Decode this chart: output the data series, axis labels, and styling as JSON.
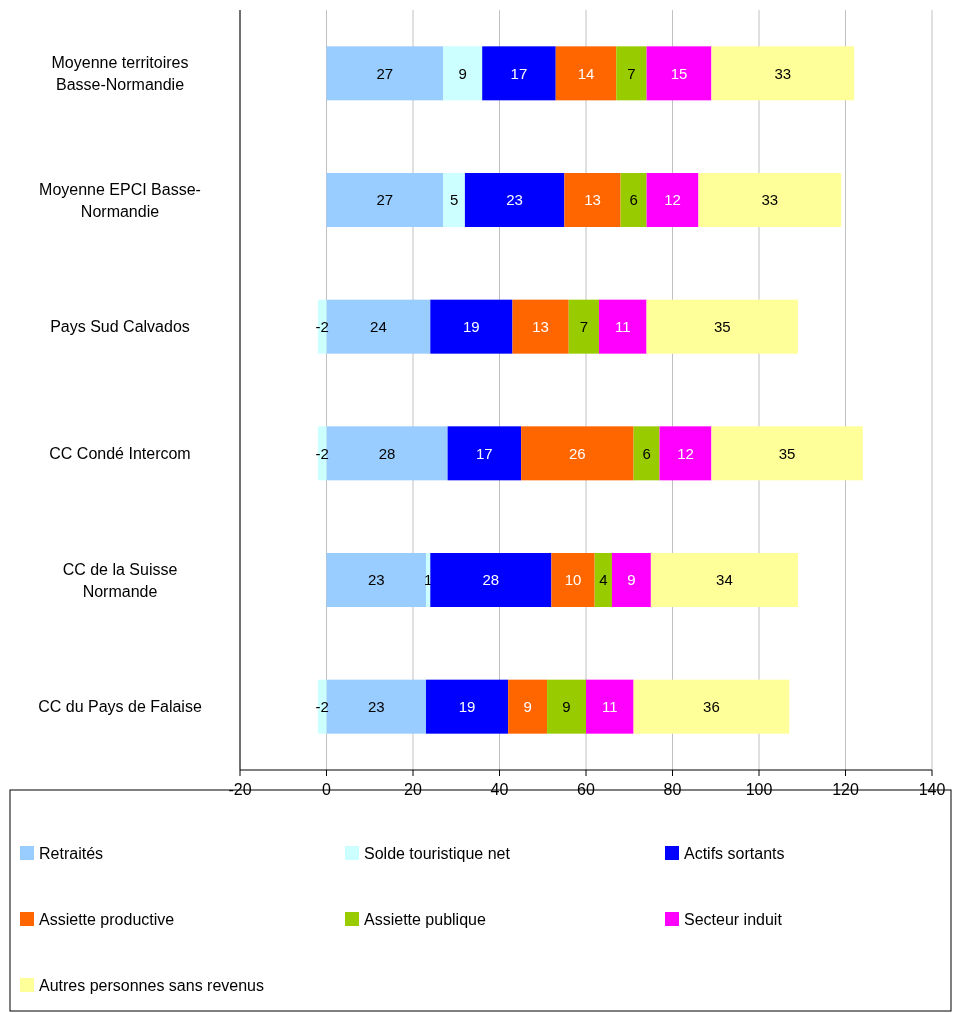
{
  "chart_data": {
    "type": "bar",
    "orientation": "horizontal",
    "stacked": true,
    "data_labels": true,
    "grid": "x",
    "legend": "bottom",
    "categories": [
      "Moyenne territoires Basse-Normandie",
      "Moyenne EPCI Basse-Normandie",
      "Pays Sud Calvados",
      "CC Condé Intercom",
      "CC de la Suisse Normande",
      "CC du Pays de Falaise"
    ],
    "xlim": [
      -20,
      140
    ],
    "xticks": [
      -20,
      0,
      20,
      40,
      60,
      80,
      100,
      120,
      140
    ],
    "series": [
      {
        "name": "Retraités",
        "color": "#99ccff",
        "values": [
          27,
          27,
          24,
          28,
          23,
          23
        ]
      },
      {
        "name": "Solde touristique net",
        "color": "#ccffff",
        "values": [
          9,
          5,
          -2,
          -2,
          1,
          -2
        ]
      },
      {
        "name": "Actifs sortants",
        "color": "#0000ff",
        "values": [
          17,
          23,
          19,
          17,
          28,
          19
        ]
      },
      {
        "name": "Assiette productive",
        "color": "#ff6600",
        "values": [
          14,
          13,
          13,
          26,
          10,
          9
        ]
      },
      {
        "name": "Assiette publique",
        "color": "#99cc00",
        "values": [
          7,
          6,
          7,
          6,
          4,
          9
        ]
      },
      {
        "name": "Secteur induit",
        "color": "#ff00ff",
        "values": [
          15,
          12,
          11,
          12,
          9,
          11
        ]
      },
      {
        "name": "Autres personnes sans revenus",
        "color": "#ffff99",
        "values": [
          33,
          33,
          35,
          35,
          34,
          36
        ]
      }
    ]
  }
}
